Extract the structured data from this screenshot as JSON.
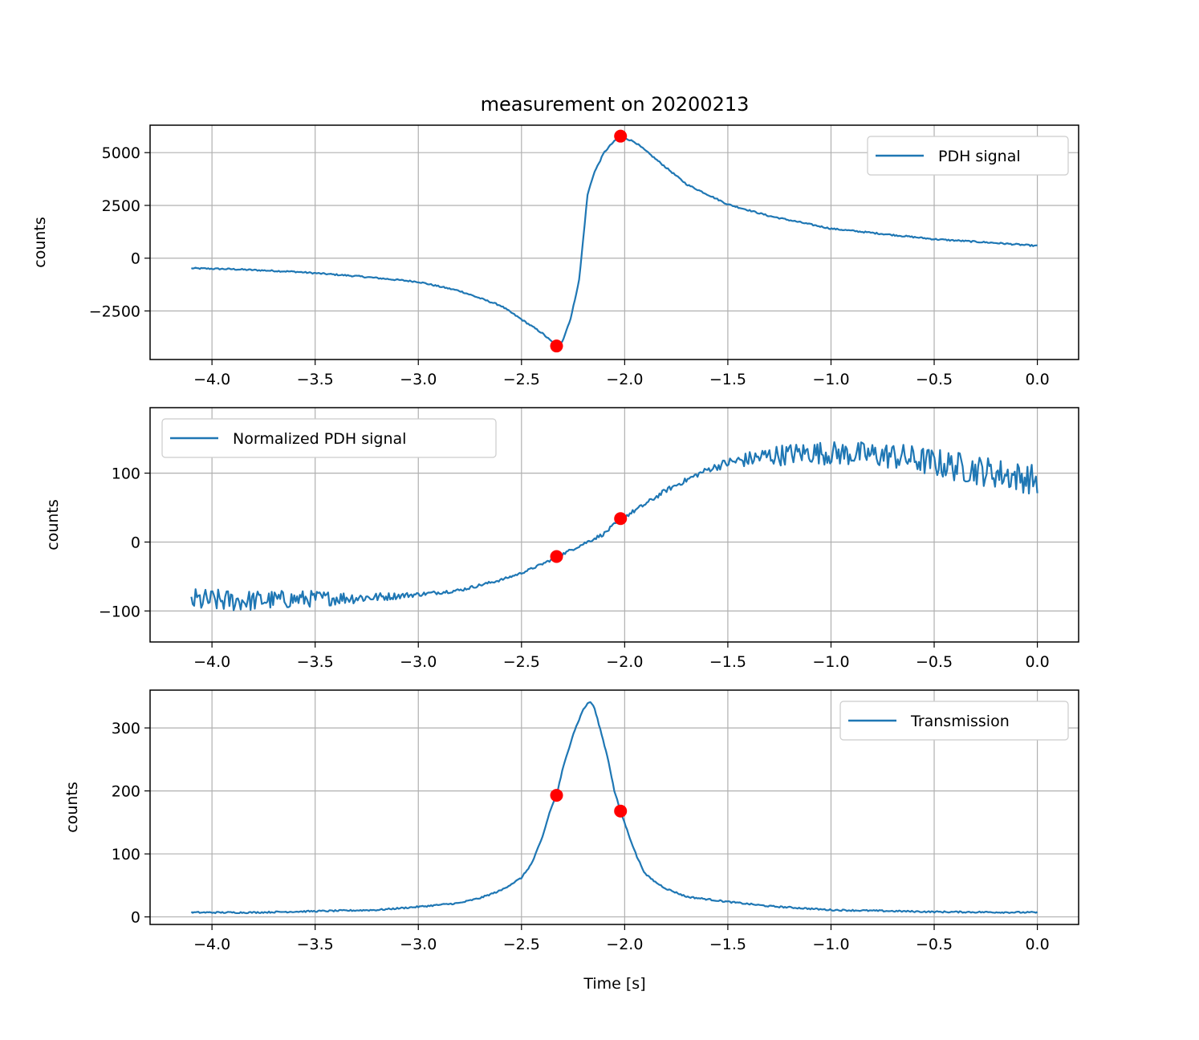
{
  "chart_data": {
    "type": "line",
    "title": "measurement on 20200213",
    "xlabel": "Time [s]",
    "colors": {
      "series": "#1f77b4",
      "markers": "#ff0000",
      "grid": "#b0b0b0"
    },
    "shared_x_ticks": [
      -4.0,
      -3.5,
      -3.0,
      -2.5,
      -2.0,
      -1.5,
      -1.0,
      -0.5,
      0.0
    ],
    "shared_x_tick_labels": [
      "−4.0",
      "−3.5",
      "−3.0",
      "−2.5",
      "−2.0",
      "−1.5",
      "−1.0",
      "−0.5",
      "0.0"
    ],
    "xlim": [
      -4.3,
      0.2
    ],
    "grid": true,
    "panels": [
      {
        "ylabel": "counts",
        "ylim": [
          -4800,
          6300
        ],
        "yticks": [
          -2500,
          0,
          2500,
          5000
        ],
        "ytick_labels": [
          "−2500",
          "0",
          "2500",
          "5000"
        ],
        "legend": {
          "label": "PDH signal",
          "placement": "upper right"
        },
        "noise": 35,
        "series_points": [
          [
            -4.1,
            -480
          ],
          [
            -3.9,
            -520
          ],
          [
            -3.6,
            -640
          ],
          [
            -3.3,
            -850
          ],
          [
            -3.0,
            -1120
          ],
          [
            -2.8,
            -1550
          ],
          [
            -2.6,
            -2250
          ],
          [
            -2.5,
            -2900
          ],
          [
            -2.4,
            -3550
          ],
          [
            -2.33,
            -4160
          ],
          [
            -2.3,
            -3900
          ],
          [
            -2.26,
            -2800
          ],
          [
            -2.22,
            -1000
          ],
          [
            -2.2,
            1000
          ],
          [
            -2.18,
            3000
          ],
          [
            -2.15,
            4000
          ],
          [
            -2.1,
            5000
          ],
          [
            -2.06,
            5450
          ],
          [
            -2.02,
            5780
          ],
          [
            -1.95,
            5500
          ],
          [
            -1.8,
            4300
          ],
          [
            -1.7,
            3500
          ],
          [
            -1.5,
            2550
          ],
          [
            -1.3,
            2000
          ],
          [
            -1.0,
            1400
          ],
          [
            -0.7,
            1100
          ],
          [
            -0.5,
            900
          ],
          [
            -0.2,
            720
          ],
          [
            0.0,
            580
          ]
        ],
        "markers": [
          [
            -2.33,
            -4160
          ],
          [
            -2.02,
            5780
          ]
        ]
      },
      {
        "ylabel": "counts",
        "ylim": [
          -145,
          195
        ],
        "yticks": [
          -100,
          0,
          100
        ],
        "ytick_labels": [
          "−100",
          "0",
          "100"
        ],
        "legend": {
          "label": "Normalized PDH signal",
          "placement": "upper left"
        },
        "noise_segments": [
          [
            -4.1,
            18
          ],
          [
            -3.5,
            12
          ],
          [
            -3.0,
            3
          ],
          [
            -2.5,
            1.5
          ],
          [
            -1.6,
            4
          ],
          [
            -1.3,
            15
          ],
          [
            -0.4,
            22
          ],
          [
            0.0,
            22
          ]
        ],
        "series_points": [
          [
            -4.1,
            -85
          ],
          [
            -3.8,
            -85
          ],
          [
            -3.5,
            -82
          ],
          [
            -3.2,
            -80
          ],
          [
            -3.0,
            -76
          ],
          [
            -2.8,
            -70
          ],
          [
            -2.6,
            -55
          ],
          [
            -2.5,
            -45
          ],
          [
            -2.4,
            -32
          ],
          [
            -2.33,
            -22
          ],
          [
            -2.25,
            -10
          ],
          [
            -2.1,
            12
          ],
          [
            -2.02,
            33
          ],
          [
            -1.9,
            55
          ],
          [
            -1.8,
            75
          ],
          [
            -1.7,
            90
          ],
          [
            -1.6,
            105
          ],
          [
            -1.5,
            115
          ],
          [
            -1.3,
            125
          ],
          [
            -1.1,
            130
          ],
          [
            -0.9,
            128
          ],
          [
            -0.7,
            125
          ],
          [
            -0.5,
            115
          ],
          [
            -0.3,
            105
          ],
          [
            -0.1,
            95
          ],
          [
            0.0,
            90
          ]
        ],
        "markers": [
          [
            -2.33,
            -21
          ],
          [
            -2.02,
            34
          ]
        ]
      },
      {
        "ylabel": "counts",
        "ylim": [
          -12,
          360
        ],
        "yticks": [
          0,
          100,
          200,
          300
        ],
        "ytick_labels": [
          "0",
          "100",
          "200",
          "300"
        ],
        "legend": {
          "label": "Transmission",
          "placement": "upper right"
        },
        "noise": 1.2,
        "series_points": [
          [
            -4.1,
            7
          ],
          [
            -3.8,
            7
          ],
          [
            -3.5,
            9
          ],
          [
            -3.2,
            11
          ],
          [
            -3.0,
            16
          ],
          [
            -2.8,
            22
          ],
          [
            -2.7,
            30
          ],
          [
            -2.6,
            42
          ],
          [
            -2.5,
            62
          ],
          [
            -2.45,
            85
          ],
          [
            -2.4,
            125
          ],
          [
            -2.36,
            170
          ],
          [
            -2.33,
            193
          ],
          [
            -2.3,
            235
          ],
          [
            -2.25,
            290
          ],
          [
            -2.2,
            330
          ],
          [
            -2.17,
            342
          ],
          [
            -2.15,
            335
          ],
          [
            -2.12,
            300
          ],
          [
            -2.08,
            250
          ],
          [
            -2.05,
            200
          ],
          [
            -2.02,
            168
          ],
          [
            -1.98,
            130
          ],
          [
            -1.94,
            95
          ],
          [
            -1.9,
            68
          ],
          [
            -1.85,
            55
          ],
          [
            -1.8,
            45
          ],
          [
            -1.7,
            32
          ],
          [
            -1.5,
            24
          ],
          [
            -1.3,
            17
          ],
          [
            -1.0,
            11
          ],
          [
            -0.5,
            8
          ],
          [
            0.0,
            7
          ]
        ],
        "markers": [
          [
            -2.33,
            193
          ],
          [
            -2.02,
            168
          ]
        ]
      }
    ]
  }
}
